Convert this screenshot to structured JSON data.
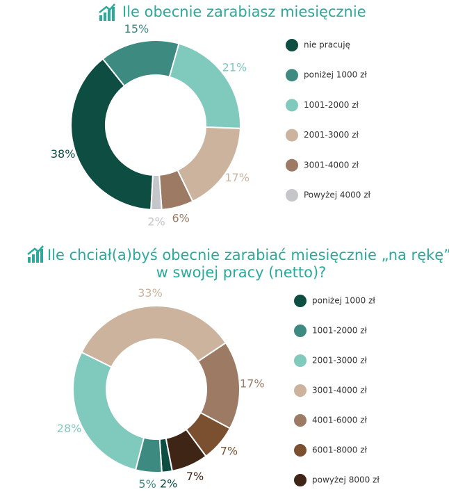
{
  "chart_data": [
    {
      "type": "donut",
      "title": [
        "Ile obecnie zarabiasz miesięcznie"
      ],
      "categories": [
        "nie pracuję",
        "poniżej 1000 zł",
        "1001-2000 zł",
        "2001-3000 zł",
        "3001-4000 zł",
        "Powyżej 4000 zł"
      ],
      "values": [
        38,
        15,
        21,
        17,
        6,
        2
      ],
      "value_labels": [
        "38%",
        "15%",
        "21%",
        "17%",
        "6%",
        "2%"
      ],
      "colors": [
        "#0d4d42",
        "#3d8a80",
        "#7fc9bd",
        "#cbb39e",
        "#9c7a64",
        "#c5c6ca"
      ]
    },
    {
      "type": "donut",
      "title": [
        "Ile chciał(a)byś obecnie zarabiać miesięcznie „na rękę”",
        "w swojej pracy (netto)?"
      ],
      "categories": [
        "poniżej 1000 zł",
        "1001-2000 zł",
        "2001-3000 zł",
        "3001-4000 zł",
        "4001-6000 zł",
        "6001-8000 zł",
        "powyżej 8000 zł"
      ],
      "values": [
        2,
        5,
        28,
        33,
        17,
        7,
        7
      ],
      "value_labels": [
        "2%",
        "5%",
        "28%",
        "33%",
        "17%",
        "7%",
        "7%"
      ],
      "colors": [
        "#0d4d42",
        "#3d8a80",
        "#7fc9bd",
        "#cbb39e",
        "#9c7a64",
        "#7a5030",
        "#3e2516"
      ]
    }
  ]
}
